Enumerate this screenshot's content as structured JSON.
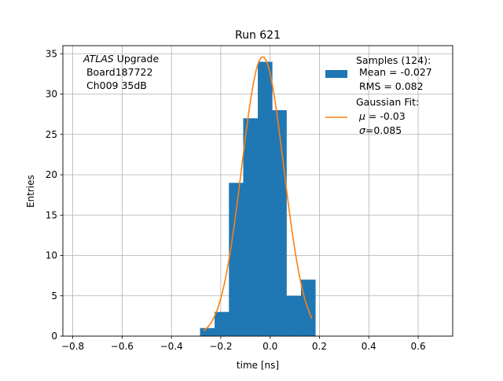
{
  "chart_data": {
    "type": "bar",
    "title": "Run 621",
    "xlabel": "time [ns]",
    "ylabel": "Entries",
    "xlim": [
      -0.84,
      0.74
    ],
    "ylim": [
      0,
      36
    ],
    "grid": true,
    "xticks": [
      -0.8,
      -0.6,
      -0.4,
      -0.2,
      0.0,
      0.2,
      0.4,
      0.6
    ],
    "xtick_labels": [
      "−0.8",
      "−0.6",
      "−0.4",
      "−0.2",
      "0.0",
      "0.2",
      "0.4",
      "0.6"
    ],
    "yticks": [
      0,
      5,
      10,
      15,
      20,
      25,
      30,
      35
    ],
    "ytick_labels": [
      "0",
      "5",
      "10",
      "15",
      "20",
      "25",
      "30",
      "35"
    ],
    "bar_color": "#1f77b4",
    "fit_color": "#ff7f0e",
    "histogram": {
      "bin_edges": [
        -0.284,
        -0.225,
        -0.167,
        -0.109,
        -0.05,
        0.008,
        0.066,
        0.125,
        0.183
      ],
      "counts": [
        1,
        3,
        19,
        27,
        34,
        28,
        5,
        7
      ]
    },
    "fit": {
      "mu": -0.03,
      "sigma": 0.085,
      "amplitude": 34.6,
      "x_range": [
        -0.27,
        0.17
      ]
    },
    "annotation": {
      "line1_italic": "ATLAS",
      "line1_rest": " Upgrade",
      "line2": " Board187722",
      "line3": " Ch009 35dB"
    },
    "legend": {
      "placement": "top-right",
      "samples": {
        "line1": "Samples (124):",
        "line2": " Mean = -0.027",
        "line3": " RMS = 0.082"
      },
      "fit": {
        "line1": "Gaussian Fit:",
        "line2_sym": "μ",
        "line2_rest": " = -0.03",
        "line3_sym": "σ",
        "line3_rest": "=0.085"
      }
    }
  }
}
